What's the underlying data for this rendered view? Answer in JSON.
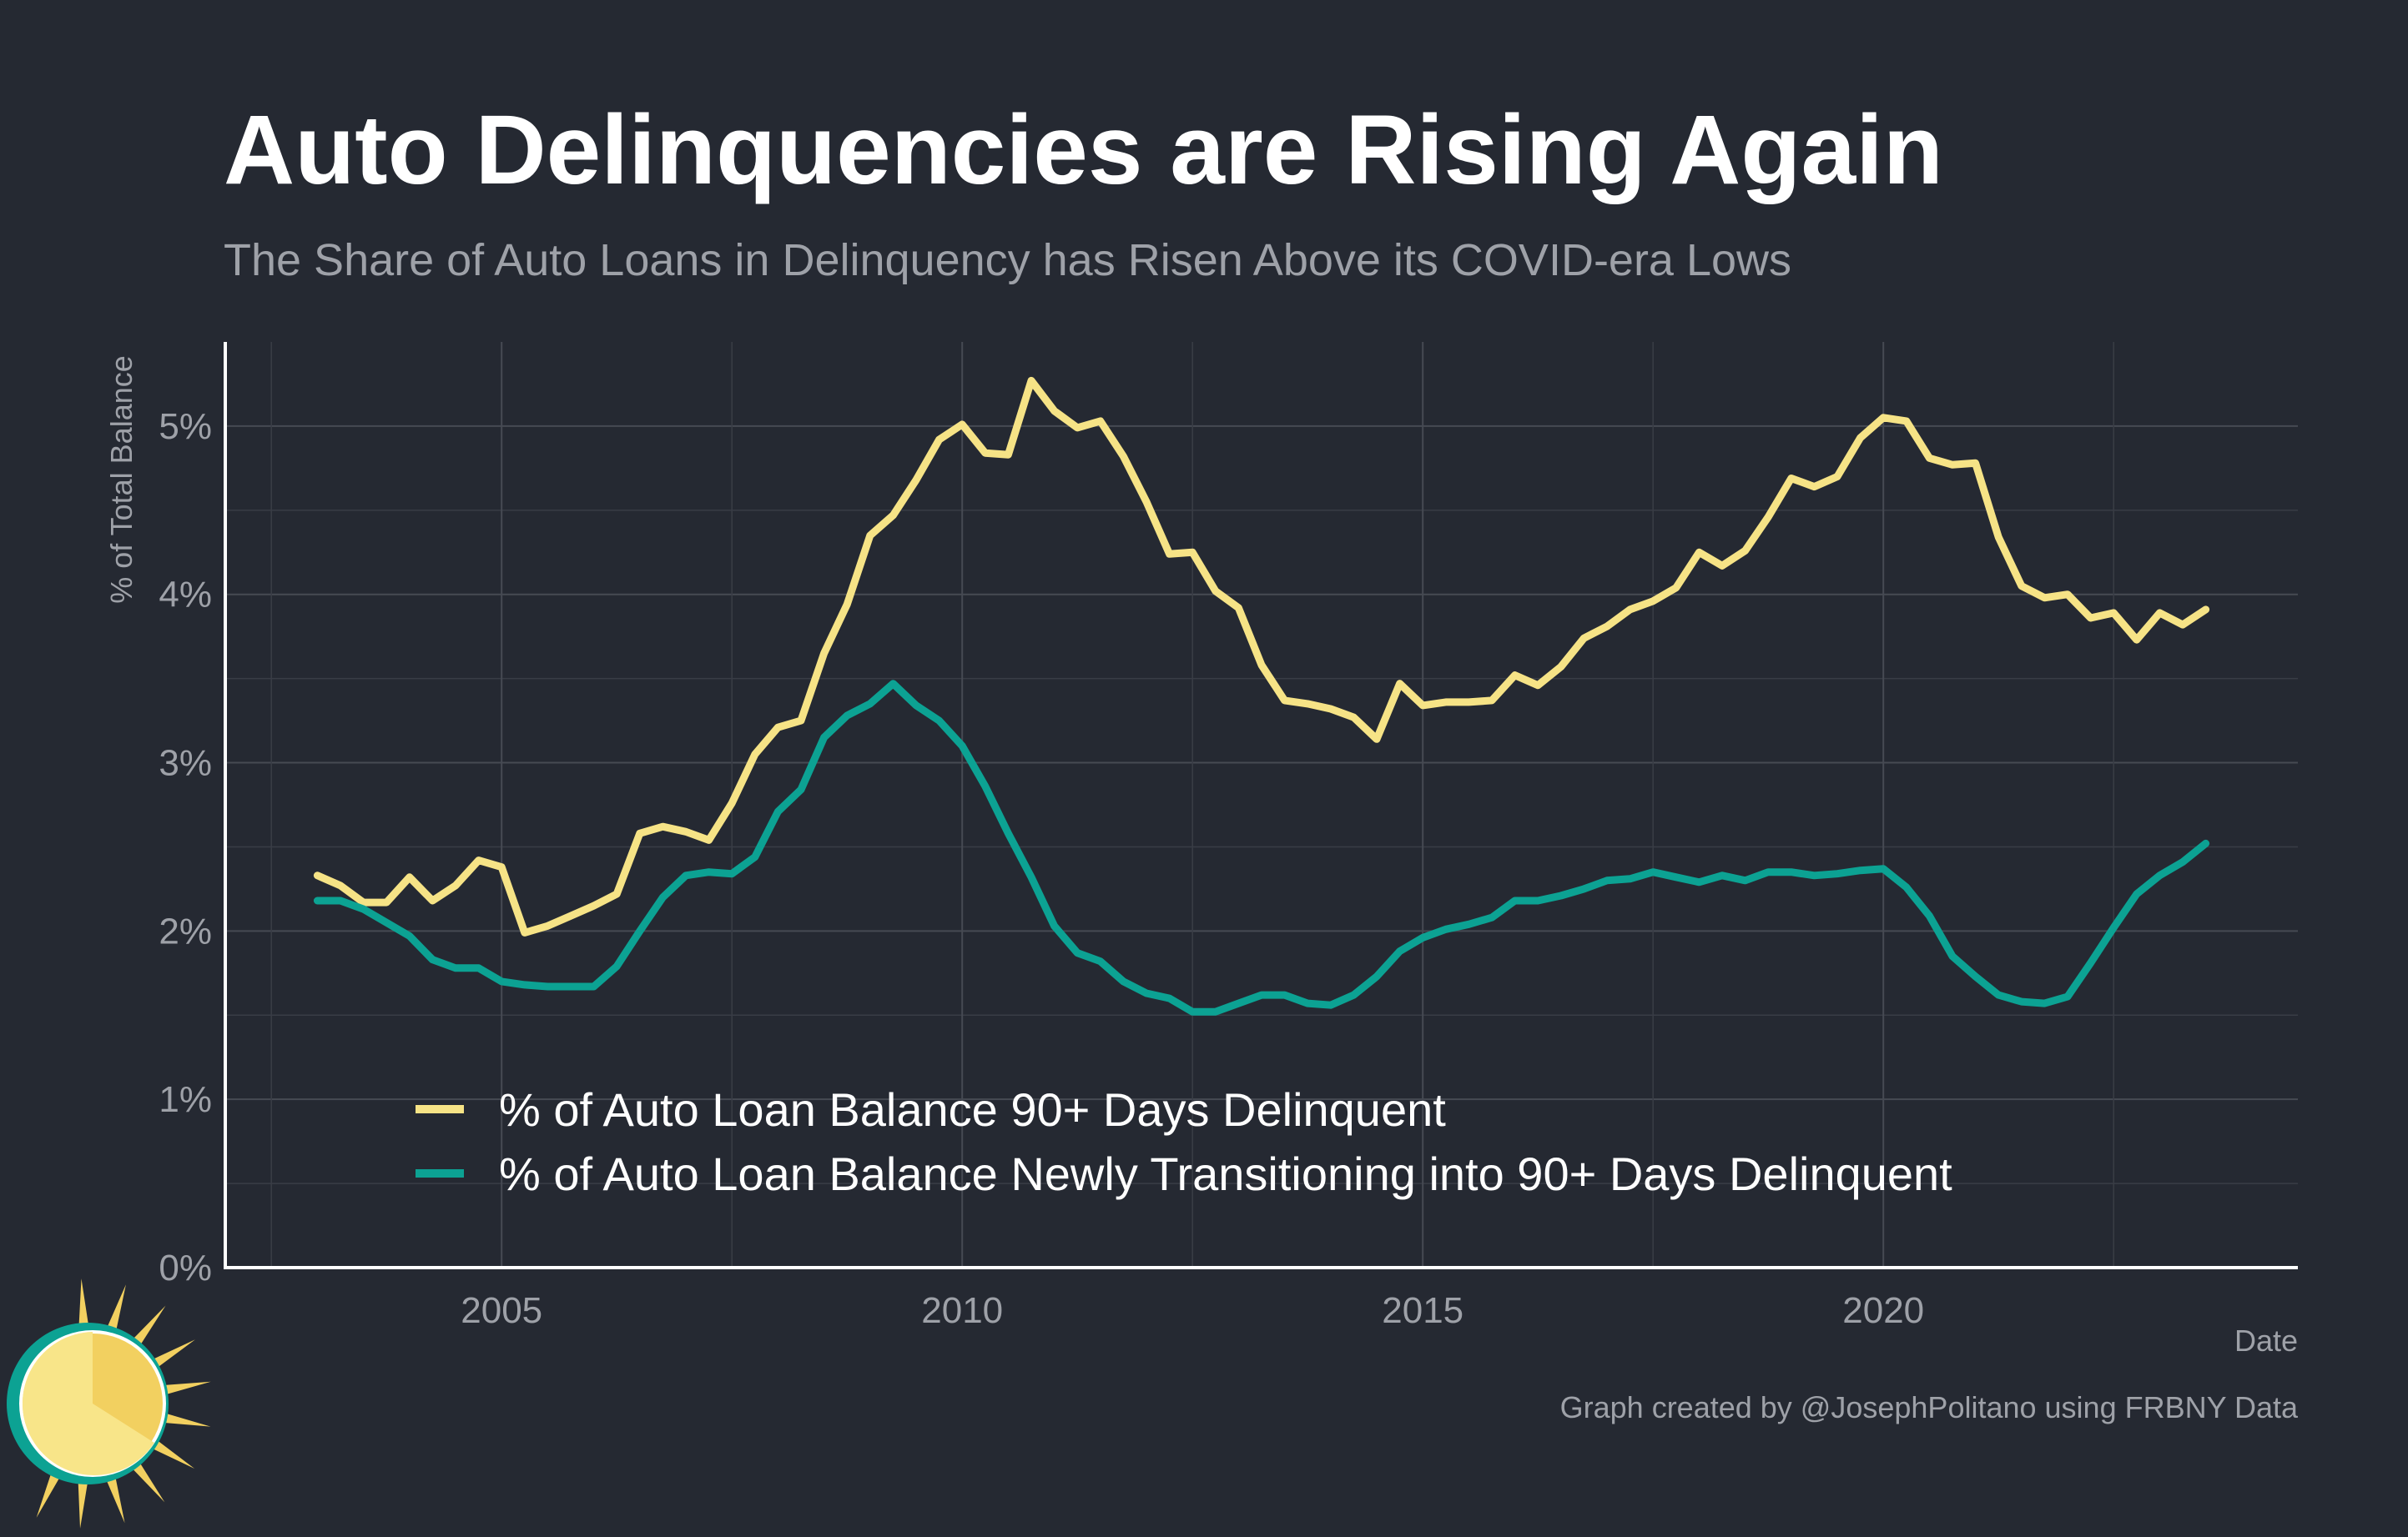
{
  "chart_data": {
    "type": "line",
    "title": "Auto Delinquencies are Rising Again",
    "subtitle": "The Share of Auto Loans in Delinquency has Risen Above its COVID-era Lows",
    "xlabel": "Date",
    "ylabel": "% of Total Balance",
    "caption": "Graph created by @JosephPolitano using FRBNY Data",
    "xlim": [
      2002.0,
      2024.5
    ],
    "ylim": [
      0,
      5.5
    ],
    "x_ticks": [
      2005,
      2010,
      2015,
      2020
    ],
    "x_tick_labels": [
      "2005",
      "2010",
      "2015",
      "2020"
    ],
    "y_ticks": [
      0,
      1,
      2,
      3,
      4,
      5
    ],
    "y_tick_labels": [
      "0%",
      "1%",
      "2%",
      "3%",
      "4%",
      "5%"
    ],
    "grid": true,
    "legend_position": "bottom-left inside plot",
    "series": [
      {
        "name": "% of Auto Loan Balance 90+ Days Delinquent",
        "color": "#f6e386",
        "x": [
          2003.0,
          2003.25,
          2003.5,
          2003.75,
          2004.0,
          2004.25,
          2004.5,
          2004.75,
          2005.0,
          2005.25,
          2005.5,
          2005.75,
          2006.0,
          2006.25,
          2006.5,
          2006.75,
          2007.0,
          2007.25,
          2007.5,
          2007.75,
          2008.0,
          2008.25,
          2008.5,
          2008.75,
          2009.0,
          2009.25,
          2009.5,
          2009.75,
          2010.0,
          2010.25,
          2010.5,
          2010.75,
          2011.0,
          2011.25,
          2011.5,
          2011.75,
          2012.0,
          2012.25,
          2012.5,
          2012.75,
          2013.0,
          2013.25,
          2013.5,
          2013.75,
          2014.0,
          2014.25,
          2014.5,
          2014.75,
          2015.0,
          2015.25,
          2015.5,
          2015.75,
          2016.0,
          2016.25,
          2016.5,
          2016.75,
          2017.0,
          2017.25,
          2017.5,
          2017.75,
          2018.0,
          2018.25,
          2018.5,
          2018.75,
          2019.0,
          2019.25,
          2019.5,
          2019.75,
          2020.0,
          2020.25,
          2020.5,
          2020.75,
          2021.0,
          2021.25,
          2021.5,
          2021.75,
          2022.0,
          2022.25,
          2022.5,
          2022.75,
          2023.0,
          2023.25,
          2023.5
        ],
        "y": [
          2.33,
          2.27,
          2.17,
          2.17,
          2.32,
          2.18,
          2.27,
          2.42,
          2.38,
          1.99,
          2.03,
          2.09,
          2.15,
          2.22,
          2.58,
          2.62,
          2.59,
          2.54,
          2.76,
          3.05,
          3.21,
          3.25,
          3.65,
          3.94,
          4.35,
          4.47,
          4.68,
          4.92,
          5.01,
          4.84,
          4.83,
          5.27,
          5.09,
          4.99,
          5.03,
          4.82,
          4.55,
          4.24,
          4.25,
          4.02,
          3.92,
          3.58,
          3.37,
          3.35,
          3.32,
          3.27,
          3.14,
          3.47,
          3.34,
          3.36,
          3.36,
          3.37,
          3.52,
          3.46,
          3.57,
          3.74,
          3.81,
          3.91,
          3.96,
          4.04,
          4.25,
          4.17,
          4.26,
          4.46,
          4.69,
          4.64,
          4.7,
          4.93,
          5.05,
          5.03,
          4.81,
          4.77,
          4.78,
          4.34,
          4.05,
          3.98,
          4.0,
          3.86,
          3.89,
          3.73,
          3.89,
          3.82,
          3.91
        ]
      },
      {
        "name": "% of Auto Loan Balance Newly Transitioning into 90+ Days Delinquent",
        "color": "#0ca293",
        "x": [
          2003.0,
          2003.25,
          2003.5,
          2003.75,
          2004.0,
          2004.25,
          2004.5,
          2004.75,
          2005.0,
          2005.25,
          2005.5,
          2005.75,
          2006.0,
          2006.25,
          2006.5,
          2006.75,
          2007.0,
          2007.25,
          2007.5,
          2007.75,
          2008.0,
          2008.25,
          2008.5,
          2008.75,
          2009.0,
          2009.25,
          2009.5,
          2009.75,
          2010.0,
          2010.25,
          2010.5,
          2010.75,
          2011.0,
          2011.25,
          2011.5,
          2011.75,
          2012.0,
          2012.25,
          2012.5,
          2012.75,
          2013.0,
          2013.25,
          2013.5,
          2013.75,
          2014.0,
          2014.25,
          2014.5,
          2014.75,
          2015.0,
          2015.25,
          2015.5,
          2015.75,
          2016.0,
          2016.25,
          2016.5,
          2016.75,
          2017.0,
          2017.25,
          2017.5,
          2017.75,
          2018.0,
          2018.25,
          2018.5,
          2018.75,
          2019.0,
          2019.25,
          2019.5,
          2019.75,
          2020.0,
          2020.25,
          2020.5,
          2020.75,
          2021.0,
          2021.25,
          2021.5,
          2021.75,
          2022.0,
          2022.25,
          2022.5,
          2022.75,
          2023.0,
          2023.25,
          2023.5
        ],
        "y": [
          2.18,
          2.18,
          2.13,
          2.05,
          1.97,
          1.83,
          1.78,
          1.78,
          1.7,
          1.68,
          1.67,
          1.67,
          1.67,
          1.79,
          2.0,
          2.2,
          2.33,
          2.35,
          2.34,
          2.44,
          2.71,
          2.84,
          3.15,
          3.28,
          3.35,
          3.47,
          3.34,
          3.25,
          3.1,
          2.86,
          2.58,
          2.32,
          2.03,
          1.87,
          1.82,
          1.7,
          1.63,
          1.6,
          1.52,
          1.52,
          1.57,
          1.62,
          1.62,
          1.57,
          1.56,
          1.62,
          1.73,
          1.88,
          1.96,
          2.01,
          2.04,
          2.08,
          2.18,
          2.18,
          2.21,
          2.25,
          2.3,
          2.31,
          2.35,
          2.32,
          2.29,
          2.33,
          2.3,
          2.35,
          2.35,
          2.33,
          2.34,
          2.36,
          2.37,
          2.26,
          2.09,
          1.85,
          1.73,
          1.62,
          1.58,
          1.57,
          1.61,
          1.81,
          2.02,
          2.22,
          2.33,
          2.41,
          2.52
        ]
      }
    ]
  },
  "logo": {
    "name": "sun logo",
    "colors": [
      "#f6e386",
      "#0ca293",
      "#f2d060"
    ]
  },
  "colors": {
    "background": "#252932",
    "grid_major": "#464a53",
    "grid_minor": "#393d46",
    "text_muted": "#9ea1a8",
    "text_primary": "#ffffff"
  }
}
